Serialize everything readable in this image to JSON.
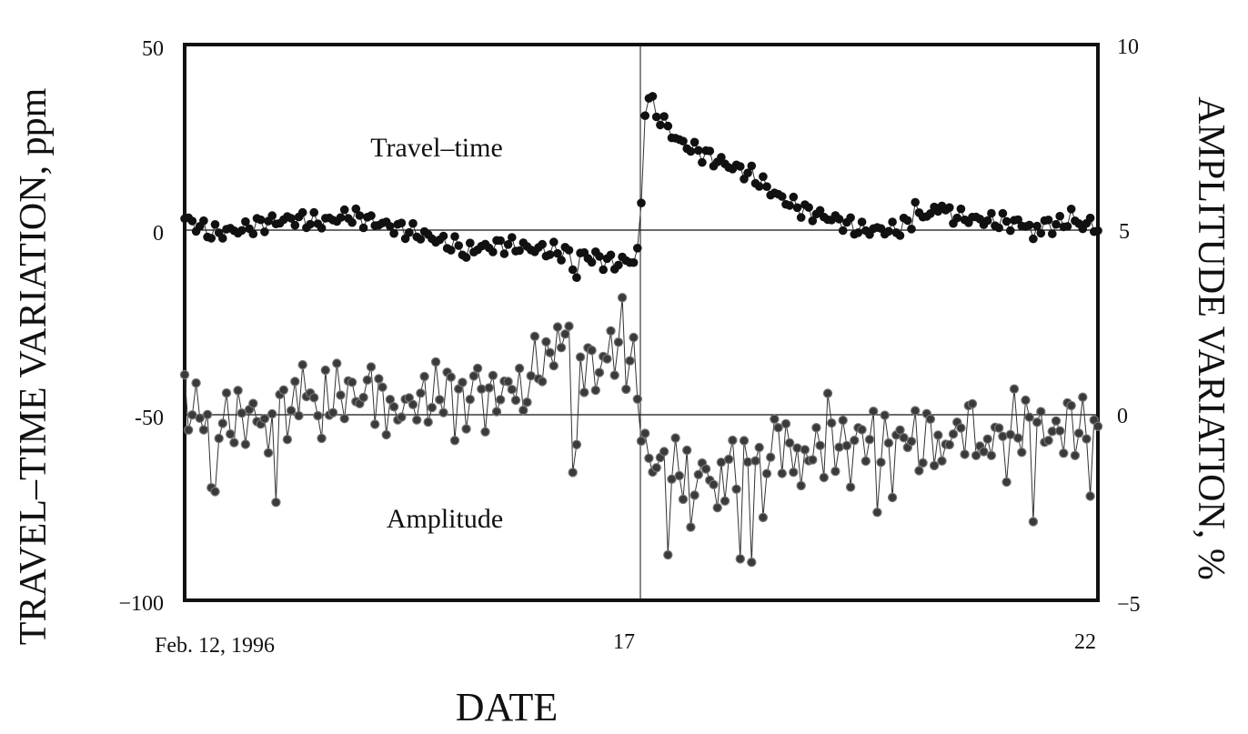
{
  "chart_data": {
    "type": "scatter",
    "xlabel": "DATE",
    "ylabel_left": "TRAVEL–TIME VARIATION, ppm",
    "ylabel_right": "AMPLITUDE VARIATION, %",
    "x_unit": "days (Feb. 12, 1996 = 0)",
    "xlim": [
      0,
      10
    ],
    "ylim_left": [
      -100,
      50
    ],
    "ylim_right": [
      -5,
      10
    ],
    "x_ticks": [
      {
        "value": 0,
        "label": "Feb. 12, 1996"
      },
      {
        "value": 5,
        "label": "17"
      },
      {
        "value": 10,
        "label": "22"
      }
    ],
    "y_ticks_left": [
      {
        "value": 50,
        "label": "50"
      },
      {
        "value": 0,
        "label": "0"
      },
      {
        "value": -50,
        "label": "-50"
      },
      {
        "value": -100,
        "label": "−100"
      }
    ],
    "y_ticks_right": [
      {
        "value": 10,
        "label": "10"
      },
      {
        "value": 5,
        "label": "5"
      },
      {
        "value": 0,
        "label": "0"
      },
      {
        "value": -5,
        "label": "−5"
      }
    ],
    "reference_lines_left": [
      0,
      -50
    ],
    "event_line_x": 5,
    "grid": false,
    "annotations": [
      {
        "text": "Travel–time",
        "x": 2.9,
        "y": 22
      },
      {
        "text": "Amplitude",
        "x": 2.6,
        "y": -79
      }
    ],
    "series": [
      {
        "axis": "left",
        "marker": "dark-dot",
        "keyframes": [
          [
            0.0,
            3
          ],
          [
            0.3,
            -1
          ],
          [
            0.6,
            0
          ],
          [
            0.9,
            2
          ],
          [
            1.2,
            3
          ],
          [
            1.5,
            2
          ],
          [
            1.8,
            4
          ],
          [
            2.1,
            2
          ],
          [
            2.4,
            0
          ],
          [
            2.7,
            -2
          ],
          [
            2.9,
            -4
          ],
          [
            3.2,
            -5
          ],
          [
            3.5,
            -4
          ],
          [
            3.8,
            -5
          ],
          [
            4.1,
            -6
          ],
          [
            4.4,
            -7
          ],
          [
            4.7,
            -9
          ],
          [
            4.95,
            -8
          ],
          [
            5.0,
            6
          ],
          [
            5.05,
            38
          ],
          [
            5.15,
            32
          ],
          [
            5.4,
            24
          ],
          [
            5.8,
            19
          ],
          [
            6.2,
            15
          ],
          [
            6.5,
            9
          ],
          [
            6.8,
            5
          ],
          [
            7.1,
            3
          ],
          [
            7.4,
            0
          ],
          [
            7.8,
            0
          ],
          [
            8.0,
            3
          ],
          [
            8.2,
            5
          ],
          [
            8.6,
            3
          ],
          [
            9.0,
            2
          ],
          [
            9.4,
            1
          ],
          [
            9.7,
            2
          ],
          [
            10.0,
            1
          ]
        ],
        "spikes": [
          {
            "x": 3.1,
            "dy": -4
          },
          {
            "x": 4.25,
            "dy": -3
          },
          {
            "x": 4.3,
            "dy": -6
          },
          {
            "x": 8.0,
            "dy": 4
          },
          {
            "x": 8.3,
            "dy": 4
          },
          {
            "x": 9.3,
            "dy": -5
          },
          {
            "x": 9.7,
            "dy": 3
          }
        ]
      },
      {
        "axis": "right",
        "marker": "grey-dot",
        "keyframes": [
          [
            0.0,
            0.4
          ],
          [
            0.3,
            -0.2
          ],
          [
            0.6,
            -0.1
          ],
          [
            0.9,
            0.0
          ],
          [
            1.2,
            0.2
          ],
          [
            1.5,
            0.5
          ],
          [
            1.8,
            0.6
          ],
          [
            2.1,
            0.4
          ],
          [
            2.4,
            0.2
          ],
          [
            2.7,
            0.5
          ],
          [
            3.0,
            0.9
          ],
          [
            3.3,
            0.4
          ],
          [
            3.6,
            0.8
          ],
          [
            3.9,
            1.4
          ],
          [
            4.2,
            1.8
          ],
          [
            4.5,
            1.2
          ],
          [
            4.8,
            1.6
          ],
          [
            4.95,
            1.2
          ],
          [
            5.0,
            -0.3
          ],
          [
            5.05,
            -1.2
          ],
          [
            5.3,
            -1.4
          ],
          [
            5.6,
            -1.6
          ],
          [
            5.9,
            -1.5
          ],
          [
            6.2,
            -1.2
          ],
          [
            6.5,
            -0.9
          ],
          [
            6.8,
            -1.0
          ],
          [
            7.1,
            -0.8
          ],
          [
            7.4,
            -0.6
          ],
          [
            7.7,
            -0.8
          ],
          [
            8.0,
            -0.5
          ],
          [
            8.3,
            -0.6
          ],
          [
            8.6,
            -0.4
          ],
          [
            8.9,
            -0.6
          ],
          [
            9.2,
            -0.3
          ],
          [
            9.5,
            -0.5
          ],
          [
            9.8,
            -0.3
          ],
          [
            10.0,
            -0.5
          ]
        ],
        "spikes": [
          {
            "x": 0.3,
            "dy": -2.0
          },
          {
            "x": 0.35,
            "dy": -2.0
          },
          {
            "x": 0.9,
            "dy": -1.5
          },
          {
            "x": 1.0,
            "dy": -1.7
          },
          {
            "x": 1.3,
            "dy": 1.4
          },
          {
            "x": 1.5,
            "dy": -1.2
          },
          {
            "x": 2.05,
            "dy": 1.0
          },
          {
            "x": 2.3,
            "dy": -0.7
          },
          {
            "x": 2.95,
            "dy": -1.3
          },
          {
            "x": 3.1,
            "dy": -1.6
          },
          {
            "x": 3.15,
            "dy": 1.0
          },
          {
            "x": 3.7,
            "dy": -1.4
          },
          {
            "x": 4.1,
            "dy": 0.9
          },
          {
            "x": 4.2,
            "dy": 1.0
          },
          {
            "x": 4.25,
            "dy": -2.8
          },
          {
            "x": 4.3,
            "dy": -3.2
          },
          {
            "x": 4.65,
            "dy": 1.0
          },
          {
            "x": 4.8,
            "dy": 1.2
          },
          {
            "x": 5.3,
            "dy": -1.9
          },
          {
            "x": 5.55,
            "dy": -1.8
          },
          {
            "x": 5.85,
            "dy": -1.5
          },
          {
            "x": 6.1,
            "dy": -2.3
          },
          {
            "x": 6.2,
            "dy": -2.5
          },
          {
            "x": 6.35,
            "dy": -2.0
          },
          {
            "x": 6.5,
            "dy": 0.9
          },
          {
            "x": 6.75,
            "dy": -1.2
          },
          {
            "x": 7.05,
            "dy": 1.0
          },
          {
            "x": 7.3,
            "dy": -1.0
          },
          {
            "x": 7.6,
            "dy": -1.4
          },
          {
            "x": 7.75,
            "dy": -0.9
          },
          {
            "x": 8.05,
            "dy": -0.9
          },
          {
            "x": 8.3,
            "dy": -1.2
          },
          {
            "x": 8.6,
            "dy": 0.5
          },
          {
            "x": 8.75,
            "dy": -1.3
          },
          {
            "x": 9.0,
            "dy": -1.0
          },
          {
            "x": 9.1,
            "dy": 0.5
          },
          {
            "x": 9.3,
            "dy": -1.7
          },
          {
            "x": 9.65,
            "dy": 0.4
          },
          {
            "x": 9.9,
            "dy": -1.3
          }
        ]
      }
    ]
  }
}
